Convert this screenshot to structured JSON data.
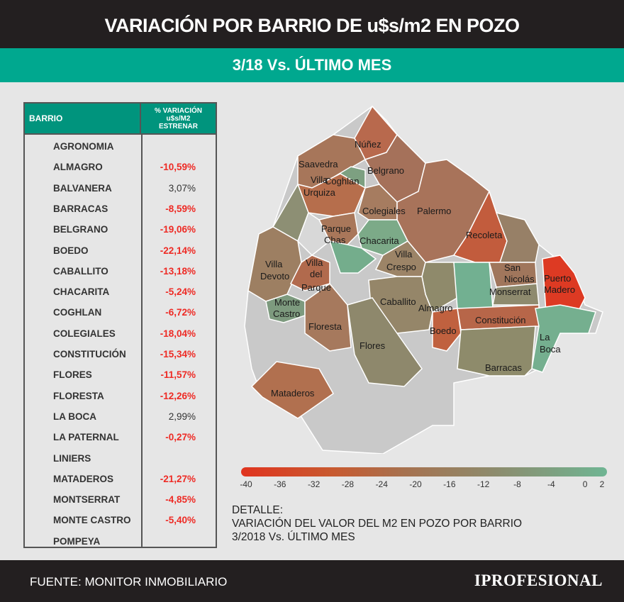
{
  "header": {
    "title": "VARIACIÓN POR BARRIO DE u$s/m2 EN POZO",
    "subtitle": "3/18 Vs. ÚLTIMO MES"
  },
  "table": {
    "col1": "BARRIO",
    "col2": [
      "% VARIACIÓN",
      "u$s/M2",
      "ESTRENAR"
    ],
    "rows": [
      {
        "name": "AGRONOMIA",
        "value": ""
      },
      {
        "name": "ALMAGRO",
        "value": "-10,59%"
      },
      {
        "name": "BALVANERA",
        "value": "3,07%"
      },
      {
        "name": "BARRACAS",
        "value": "-8,59%"
      },
      {
        "name": "BELGRANO",
        "value": "-19,06%"
      },
      {
        "name": "BOEDO",
        "value": "-22,14%"
      },
      {
        "name": "CABALLITO",
        "value": "-13,18%"
      },
      {
        "name": "CHACARITA",
        "value": "-5,24%"
      },
      {
        "name": "COGHLAN",
        "value": "-6,72%"
      },
      {
        "name": "COLEGIALES",
        "value": "-18,04%"
      },
      {
        "name": "CONSTITUCIÓN",
        "value": "-15,34%"
      },
      {
        "name": "FLORES",
        "value": "-11,57%"
      },
      {
        "name": "FLORESTA",
        "value": "-12,26%"
      },
      {
        "name": "LA BOCA",
        "value": "2,99%"
      },
      {
        "name": "LA PATERNAL",
        "value": "-0,27%"
      },
      {
        "name": "LINIERS",
        "value": ""
      },
      {
        "name": "MATADEROS",
        "value": "-21,27%"
      },
      {
        "name": "MONTSERRAT",
        "value": "-4,85%"
      },
      {
        "name": "MONTE CASTRO",
        "value": "-5,40%"
      },
      {
        "name": "POMPEYA",
        "value": ""
      }
    ]
  },
  "chart_data": {
    "type": "heatmap",
    "title": "VARIACIÓN POR BARRIO DE u$s/m2 EN POZO",
    "subtitle": "3/18 Vs. ÚLTIMO MES",
    "map_labels": [
      "Núñez",
      "Saavedra",
      "Belgrano",
      "Coghlan",
      "Villa",
      "Urquiza",
      "Colegiales",
      "Palermo",
      "Parque",
      "Chas",
      "Chacarita",
      "Recoleta",
      "Villa",
      "Crespo",
      "Villa",
      "Devoto",
      "Villa",
      "del",
      "Parque",
      "San",
      "Nicolás",
      "Puerto",
      "Madero",
      "Almagro",
      "Monserrat",
      "Monte",
      "Castro",
      "Caballito",
      "Constitución",
      "Floresta",
      "Boedo",
      "La",
      "Boca",
      "Flores",
      "Barracas",
      "Mataderos"
    ],
    "legend": {
      "range": [
        -40,
        2
      ],
      "ticks": [
        "-40",
        "-36",
        "-32",
        "-28",
        "-24",
        "-20",
        "-16",
        "-12",
        "-8",
        "-4",
        "0",
        "2"
      ],
      "colors": [
        "#e0341f",
        "#6fb593"
      ]
    }
  },
  "detail": [
    "DETALLE:",
    "VARIACIÓN DEL VALOR DEL M2 EN POZO POR BARRIO",
    "3/2018 Vs. ÚLTIMO MES"
  ],
  "footer": {
    "source": "FUENTE: MONITOR INMOBILIARIO",
    "logo": "IPROFESIONAL"
  }
}
